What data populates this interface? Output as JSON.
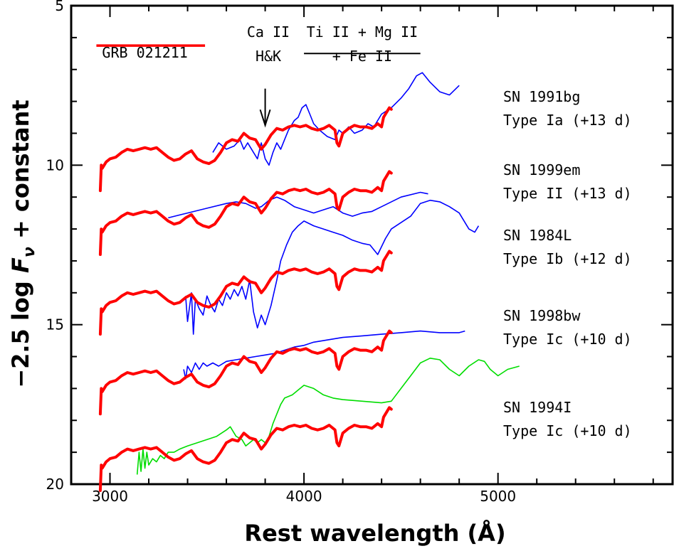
{
  "chart_data": {
    "type": "line",
    "title": "",
    "xlabel": "Rest wavelength (Å)",
    "ylabel_parts": [
      "−2.5 log ",
      "F",
      "ν",
      " + constant"
    ],
    "xlim": [
      2800,
      5900
    ],
    "ylim": [
      20,
      5
    ],
    "y_inverted": true,
    "x_ticks": [
      3000,
      4000,
      5000
    ],
    "y_ticks": [
      10,
      15,
      20,
      5
    ],
    "grid": false,
    "legend": {
      "label": "GRB 021211",
      "color": "#ff0000",
      "x_range": [
        2930,
        3490
      ],
      "y": 6.25
    },
    "annotations": [
      {
        "lines": [
          "Ca II",
          "H&K"
        ],
        "arrow": {
          "x": 3800,
          "from_y": 7.6,
          "to_y": 8.75
        }
      },
      {
        "lines": [
          "Ti II + Mg II",
          "+ Fe II"
        ],
        "bar": {
          "x_range": [
            4000,
            4600
          ],
          "y": 6.5
        }
      }
    ],
    "series": [
      {
        "name": "SN 1991bg",
        "color": "#0000ff",
        "type_label": "Type Ia (+13 d)",
        "x": [
          3530,
          3560,
          3600,
          3640,
          3670,
          3690,
          3710,
          3740,
          3760,
          3780,
          3800,
          3820,
          3840,
          3860,
          3880,
          3900,
          3920,
          3950,
          3970,
          3990,
          4010,
          4030,
          4050,
          4080,
          4120,
          4160,
          4180,
          4200,
          4230,
          4260,
          4300,
          4330,
          4360,
          4400,
          4450,
          4500,
          4540,
          4580,
          4610,
          4650,
          4700,
          4750,
          4800
        ],
        "y": [
          9.6,
          9.3,
          9.5,
          9.4,
          9.2,
          9.5,
          9.3,
          9.6,
          9.8,
          9.3,
          9.8,
          10.0,
          9.6,
          9.3,
          9.5,
          9.2,
          8.9,
          8.6,
          8.5,
          8.2,
          8.1,
          8.4,
          8.7,
          8.9,
          9.1,
          9.2,
          8.9,
          9.0,
          8.8,
          9.0,
          8.9,
          8.7,
          8.8,
          8.4,
          8.2,
          7.9,
          7.6,
          7.2,
          7.1,
          7.4,
          7.7,
          7.8,
          7.5
        ]
      },
      {
        "name": "SN 1999em",
        "color": "#0000ff",
        "type_label": "Type II (+13 d)",
        "x": [
          3300,
          3400,
          3500,
          3600,
          3650,
          3700,
          3750,
          3780,
          3820,
          3860,
          3900,
          3950,
          4000,
          4050,
          4100,
          4150,
          4200,
          4250,
          4300,
          4350,
          4400,
          4500,
          4600,
          4640
        ],
        "y": [
          11.65,
          11.5,
          11.35,
          11.2,
          11.15,
          11.2,
          11.35,
          11.3,
          11.1,
          11.0,
          11.1,
          11.3,
          11.4,
          11.5,
          11.4,
          11.3,
          11.5,
          11.6,
          11.5,
          11.45,
          11.3,
          11.0,
          10.85,
          10.9
        ]
      },
      {
        "name": "SN 1984L",
        "color": "#0000ff",
        "type_label": "Type Ib (+12 d)",
        "x": [
          3390,
          3400,
          3420,
          3430,
          3440,
          3460,
          3480,
          3500,
          3520,
          3540,
          3560,
          3580,
          3600,
          3620,
          3640,
          3660,
          3680,
          3700,
          3720,
          3740,
          3760,
          3780,
          3800,
          3830,
          3860,
          3880,
          3910,
          3940,
          3970,
          4000,
          4050,
          4100,
          4150,
          4200,
          4250,
          4300,
          4340,
          4380,
          4420,
          4450,
          4500,
          4550,
          4600,
          4650,
          4700,
          4750,
          4800,
          4850,
          4880,
          4900
        ],
        "y": [
          14.1,
          14.9,
          14.0,
          15.3,
          14.2,
          14.5,
          14.7,
          14.1,
          14.4,
          14.6,
          14.2,
          14.4,
          14.0,
          14.2,
          13.9,
          14.1,
          13.8,
          14.2,
          13.6,
          14.6,
          15.1,
          14.7,
          15.0,
          14.4,
          13.6,
          13.0,
          12.5,
          12.1,
          11.9,
          11.75,
          11.9,
          12.0,
          12.1,
          12.2,
          12.35,
          12.45,
          12.5,
          12.8,
          12.3,
          12.0,
          11.8,
          11.6,
          11.2,
          11.1,
          11.15,
          11.3,
          11.5,
          12.0,
          12.1,
          11.9
        ]
      },
      {
        "name": "SN 1998bw",
        "color": "#0000ff",
        "type_label": "Type Ic (+10 d)",
        "x": [
          3380,
          3390,
          3400,
          3420,
          3440,
          3460,
          3480,
          3500,
          3530,
          3560,
          3600,
          3650,
          3700,
          3750,
          3800,
          3850,
          3900,
          3950,
          4000,
          4050,
          4100,
          4200,
          4300,
          4400,
          4500,
          4600,
          4700,
          4800,
          4830
        ],
        "y": [
          16.4,
          16.7,
          16.3,
          16.5,
          16.2,
          16.4,
          16.2,
          16.3,
          16.2,
          16.3,
          16.15,
          16.1,
          16.05,
          16.0,
          15.95,
          15.9,
          15.8,
          15.7,
          15.65,
          15.55,
          15.5,
          15.4,
          15.35,
          15.3,
          15.25,
          15.2,
          15.25,
          15.25,
          15.2
        ]
      },
      {
        "name": "SN 1994I",
        "color": "#00dd00",
        "type_label": "Type Ic (+10 d)",
        "x": [
          3140,
          3150,
          3160,
          3170,
          3180,
          3190,
          3200,
          3220,
          3240,
          3260,
          3280,
          3300,
          3330,
          3360,
          3400,
          3450,
          3500,
          3550,
          3600,
          3620,
          3650,
          3680,
          3700,
          3720,
          3740,
          3760,
          3780,
          3800,
          3820,
          3840,
          3860,
          3880,
          3900,
          3940,
          3980,
          4000,
          4050,
          4100,
          4150,
          4200,
          4300,
          4400,
          4450,
          4500,
          4550,
          4600,
          4650,
          4700,
          4750,
          4800,
          4850,
          4900,
          4930,
          4960,
          5000,
          5050,
          5110
        ],
        "y": [
          19.7,
          19.0,
          19.6,
          18.9,
          19.5,
          19.0,
          19.4,
          19.2,
          19.3,
          19.1,
          19.2,
          19.0,
          19.0,
          18.9,
          18.8,
          18.7,
          18.6,
          18.5,
          18.3,
          18.2,
          18.5,
          18.6,
          18.8,
          18.7,
          18.6,
          18.7,
          18.6,
          18.7,
          18.5,
          18.1,
          17.8,
          17.5,
          17.3,
          17.2,
          17.0,
          16.9,
          17.0,
          17.2,
          17.3,
          17.35,
          17.4,
          17.45,
          17.4,
          17.0,
          16.6,
          16.2,
          16.05,
          16.1,
          16.4,
          16.6,
          16.3,
          16.1,
          16.15,
          16.4,
          16.6,
          16.4,
          16.3
        ]
      },
      {
        "name": "GRB 021211",
        "color": "#ff0000",
        "offsets": [
          0,
          2,
          4.5,
          7,
          9.4
        ],
        "x": [
          2950,
          2955,
          2960,
          2980,
          3000,
          3030,
          3060,
          3090,
          3120,
          3150,
          3180,
          3210,
          3240,
          3270,
          3300,
          3330,
          3360,
          3390,
          3420,
          3450,
          3480,
          3510,
          3540,
          3570,
          3600,
          3630,
          3660,
          3690,
          3720,
          3750,
          3780,
          3800,
          3830,
          3860,
          3890,
          3920,
          3950,
          3980,
          4010,
          4040,
          4070,
          4100,
          4130,
          4160,
          4170,
          4180,
          4200,
          4230,
          4260,
          4290,
          4320,
          4350,
          4380,
          4400,
          4410,
          4420,
          4430,
          4440,
          4450
        ],
        "y": [
          10.8,
          10.0,
          10.1,
          9.9,
          9.8,
          9.75,
          9.6,
          9.5,
          9.55,
          9.5,
          9.45,
          9.5,
          9.45,
          9.6,
          9.75,
          9.85,
          9.8,
          9.65,
          9.55,
          9.8,
          9.9,
          9.95,
          9.85,
          9.6,
          9.3,
          9.2,
          9.25,
          9.0,
          9.15,
          9.2,
          9.5,
          9.35,
          9.05,
          8.85,
          8.9,
          8.8,
          8.75,
          8.8,
          8.75,
          8.85,
          8.9,
          8.85,
          8.75,
          8.9,
          9.3,
          9.4,
          9.0,
          8.85,
          8.75,
          8.8,
          8.8,
          8.85,
          8.7,
          8.8,
          8.5,
          8.4,
          8.3,
          8.2,
          8.25
        ]
      }
    ]
  }
}
